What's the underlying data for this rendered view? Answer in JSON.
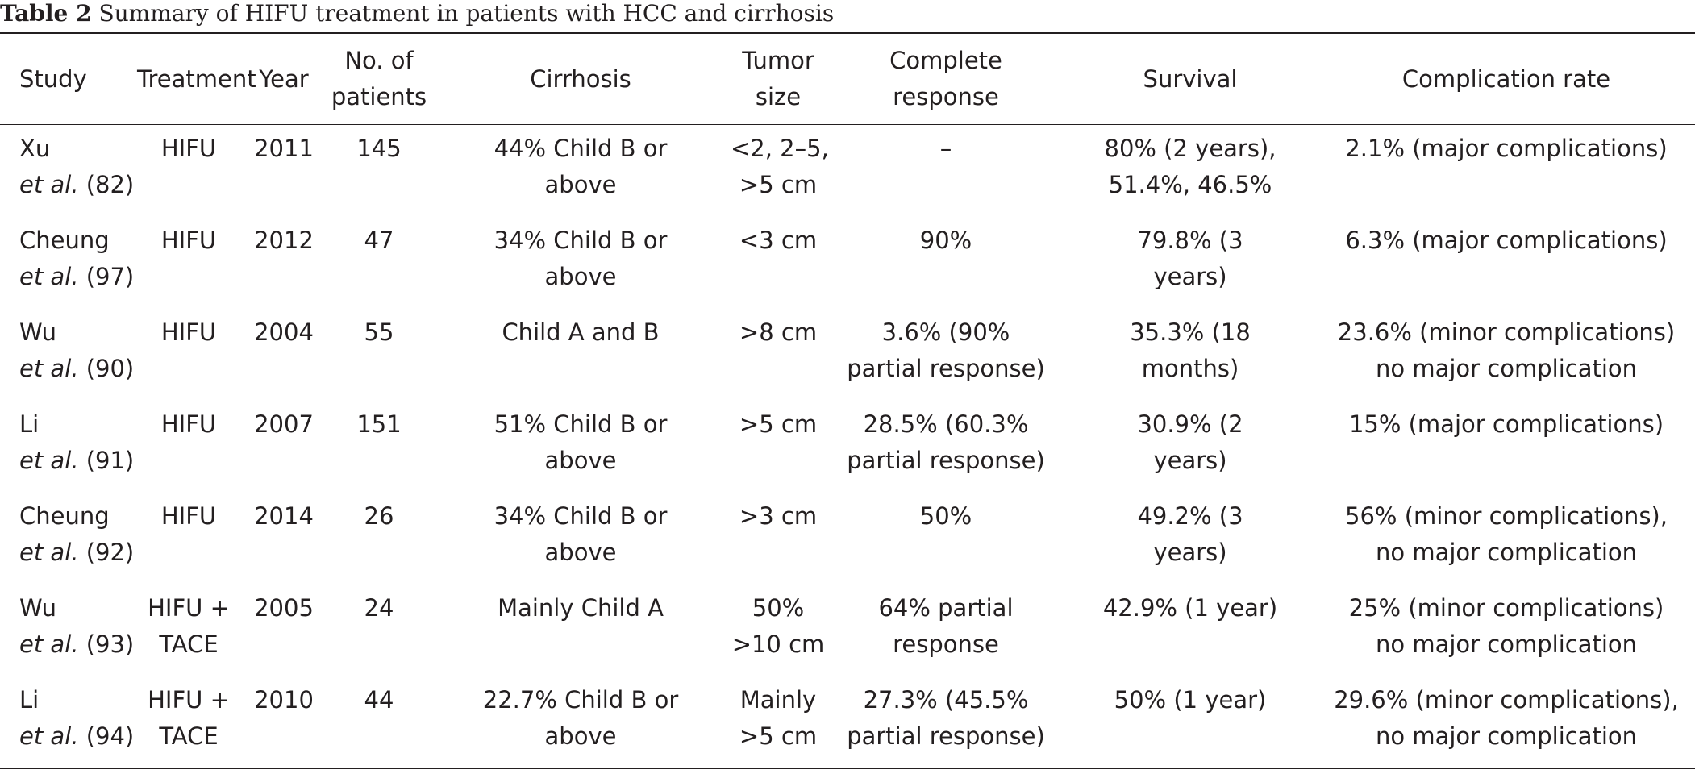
{
  "caption": {
    "label": "Table 2",
    "text": "Summary of HIFU treatment in patients with HCC and cirrhosis"
  },
  "table": {
    "headers": {
      "study": "Study",
      "treatment": "Treatment",
      "year": "Year",
      "patients_line1": "No. of",
      "patients_line2": "patients",
      "cirrhosis": "Cirrhosis",
      "tumor_line1": "Tumor",
      "tumor_line2": "size",
      "response_line1": "Complete",
      "response_line2": "response",
      "survival": "Survival",
      "complication": "Complication rate"
    },
    "rows": [
      {
        "author": "Xu",
        "etal": "et al.",
        "ref": "(82)",
        "treatment_l1": "HIFU",
        "treatment_l2": "",
        "year": "2011",
        "patients": "145",
        "cirrhosis_l1": "44% Child B or",
        "cirrhosis_l2": "above",
        "tumor_l1": "<2, 2–5,",
        "tumor_l2": ">5 cm",
        "response_l1": "–",
        "response_l2": "",
        "survival_l1": "80% (2 years),",
        "survival_l2": "51.4%, 46.5%",
        "complication_l1": "2.1% (major complications)",
        "complication_l2": ""
      },
      {
        "author": "Cheung",
        "etal": "et al.",
        "ref": "(97)",
        "treatment_l1": "HIFU",
        "treatment_l2": "",
        "year": "2012",
        "patients": "47",
        "cirrhosis_l1": "34% Child B or",
        "cirrhosis_l2": "above",
        "tumor_l1": "<3 cm",
        "tumor_l2": "",
        "response_l1": "90%",
        "response_l2": "",
        "survival_l1": "79.8% (3",
        "survival_l2": "years)",
        "complication_l1": "6.3% (major complications)",
        "complication_l2": ""
      },
      {
        "author": "Wu",
        "etal": "et al.",
        "ref": "(90)",
        "treatment_l1": "HIFU",
        "treatment_l2": "",
        "year": "2004",
        "patients": "55",
        "cirrhosis_l1": "Child A and B",
        "cirrhosis_l2": "",
        "tumor_l1": ">8 cm",
        "tumor_l2": "",
        "response_l1": "3.6% (90%",
        "response_l2": "partial response)",
        "survival_l1": "35.3% (18",
        "survival_l2": "months)",
        "complication_l1": "23.6% (minor complications)",
        "complication_l2": "no major complication"
      },
      {
        "author": "Li",
        "etal": "et al.",
        "ref": "(91)",
        "treatment_l1": "HIFU",
        "treatment_l2": "",
        "year": "2007",
        "patients": "151",
        "cirrhosis_l1": "51% Child B or",
        "cirrhosis_l2": "above",
        "tumor_l1": ">5 cm",
        "tumor_l2": "",
        "response_l1": "28.5% (60.3%",
        "response_l2": "partial response)",
        "survival_l1": "30.9% (2",
        "survival_l2": "years)",
        "complication_l1": "15% (major complications)",
        "complication_l2": ""
      },
      {
        "author": "Cheung",
        "etal": "et al.",
        "ref": "(92)",
        "treatment_l1": "HIFU",
        "treatment_l2": "",
        "year": "2014",
        "patients": "26",
        "cirrhosis_l1": "34% Child B or",
        "cirrhosis_l2": "above",
        "tumor_l1": ">3 cm",
        "tumor_l2": "",
        "response_l1": "50%",
        "response_l2": "",
        "survival_l1": "49.2% (3",
        "survival_l2": "years)",
        "complication_l1": "56% (minor complications),",
        "complication_l2": "no major complication"
      },
      {
        "author": "Wu",
        "etal": "et al.",
        "ref": "(93)",
        "treatment_l1": "HIFU +",
        "treatment_l2": "TACE",
        "year": "2005",
        "patients": "24",
        "cirrhosis_l1": "Mainly Child A",
        "cirrhosis_l2": "",
        "tumor_l1": "50%",
        "tumor_l2": ">10 cm",
        "response_l1": "64% partial",
        "response_l2": "response",
        "survival_l1": "42.9% (1 year)",
        "survival_l2": "",
        "complication_l1": "25% (minor complications)",
        "complication_l2": "no major complication"
      },
      {
        "author": "Li",
        "etal": "et al.",
        "ref": "(94)",
        "treatment_l1": "HIFU +",
        "treatment_l2": "TACE",
        "year": "2010",
        "patients": "44",
        "cirrhosis_l1": "22.7% Child B or",
        "cirrhosis_l2": "above",
        "tumor_l1": "Mainly",
        "tumor_l2": ">5 cm",
        "response_l1": "27.3% (45.5%",
        "response_l2": "partial response)",
        "survival_l1": "50% (1 year)",
        "survival_l2": "",
        "complication_l1": "29.6% (minor complications),",
        "complication_l2": "no major complication"
      }
    ]
  }
}
